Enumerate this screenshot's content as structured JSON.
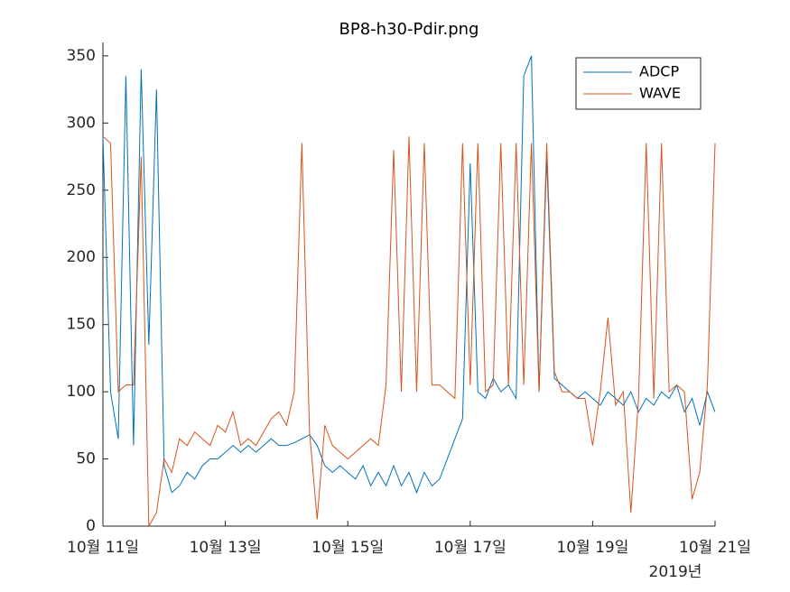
{
  "chart_data": {
    "type": "line",
    "title": "BP8-h30-Pdir.png",
    "x_secondary_label": "2019년",
    "x": [
      11,
      11.125,
      11.25,
      11.375,
      11.5,
      11.625,
      11.75,
      11.875,
      12,
      12.125,
      12.25,
      12.375,
      12.5,
      12.625,
      12.75,
      12.875,
      13,
      13.125,
      13.25,
      13.375,
      13.5,
      13.625,
      13.75,
      13.875,
      14,
      14.125,
      14.25,
      14.375,
      14.5,
      14.625,
      14.75,
      14.875,
      15,
      15.125,
      15.25,
      15.375,
      15.5,
      15.625,
      15.75,
      15.875,
      16,
      16.125,
      16.25,
      16.375,
      16.5,
      16.625,
      16.75,
      16.875,
      17,
      17.125,
      17.25,
      17.375,
      17.5,
      17.625,
      17.75,
      17.875,
      18,
      18.125,
      18.25,
      18.375,
      18.5,
      18.625,
      18.75,
      18.875,
      19,
      19.125,
      19.25,
      19.375,
      19.5,
      19.625,
      19.75,
      19.875,
      20,
      20.125,
      20.25,
      20.375,
      20.5,
      20.625,
      20.75,
      20.875,
      21
    ],
    "series": [
      {
        "name": "ADCP",
        "color": "#0072BD",
        "values": [
          290,
          100,
          65,
          335,
          60,
          340,
          135,
          325,
          45,
          25,
          30,
          40,
          35,
          45,
          50,
          50,
          55,
          60,
          55,
          60,
          55,
          60,
          65,
          60,
          60,
          62,
          65,
          68,
          60,
          45,
          40,
          45,
          40,
          35,
          45,
          30,
          40,
          30,
          45,
          30,
          40,
          25,
          40,
          30,
          35,
          50,
          65,
          80,
          270,
          100,
          95,
          110,
          100,
          105,
          95,
          335,
          350,
          100,
          275,
          110,
          105,
          100,
          95,
          100,
          95,
          90,
          100,
          95,
          90,
          100,
          85,
          95,
          90,
          100,
          95,
          105,
          85,
          95,
          75,
          100,
          85
        ]
      },
      {
        "name": "WAVE",
        "color": "#D95319",
        "values": [
          290,
          285,
          100,
          105,
          105,
          275,
          0,
          10,
          50,
          40,
          65,
          60,
          70,
          65,
          60,
          75,
          70,
          85,
          60,
          65,
          60,
          70,
          80,
          85,
          75,
          100,
          285,
          70,
          5,
          75,
          60,
          55,
          50,
          55,
          60,
          65,
          60,
          105,
          280,
          100,
          290,
          100,
          285,
          105,
          105,
          100,
          95,
          285,
          105,
          285,
          100,
          105,
          285,
          105,
          285,
          105,
          285,
          100,
          285,
          115,
          100,
          100,
          95,
          95,
          60,
          100,
          155,
          90,
          100,
          10,
          95,
          285,
          95,
          285,
          100,
          105,
          100,
          20,
          40,
          105,
          285
        ]
      }
    ],
    "xlim": [
      11,
      21
    ],
    "xticks": [
      {
        "value": 11,
        "label": "10월 11일"
      },
      {
        "value": 13,
        "label": "10월 13일"
      },
      {
        "value": 15,
        "label": "10월 15일"
      },
      {
        "value": 17,
        "label": "10월 17일"
      },
      {
        "value": 19,
        "label": "10월 19일"
      },
      {
        "value": 21,
        "label": "10월 21일"
      }
    ],
    "ylim": [
      0,
      360
    ],
    "yticks": [
      0,
      50,
      100,
      150,
      200,
      250,
      300,
      350
    ],
    "legend": "top-right"
  }
}
